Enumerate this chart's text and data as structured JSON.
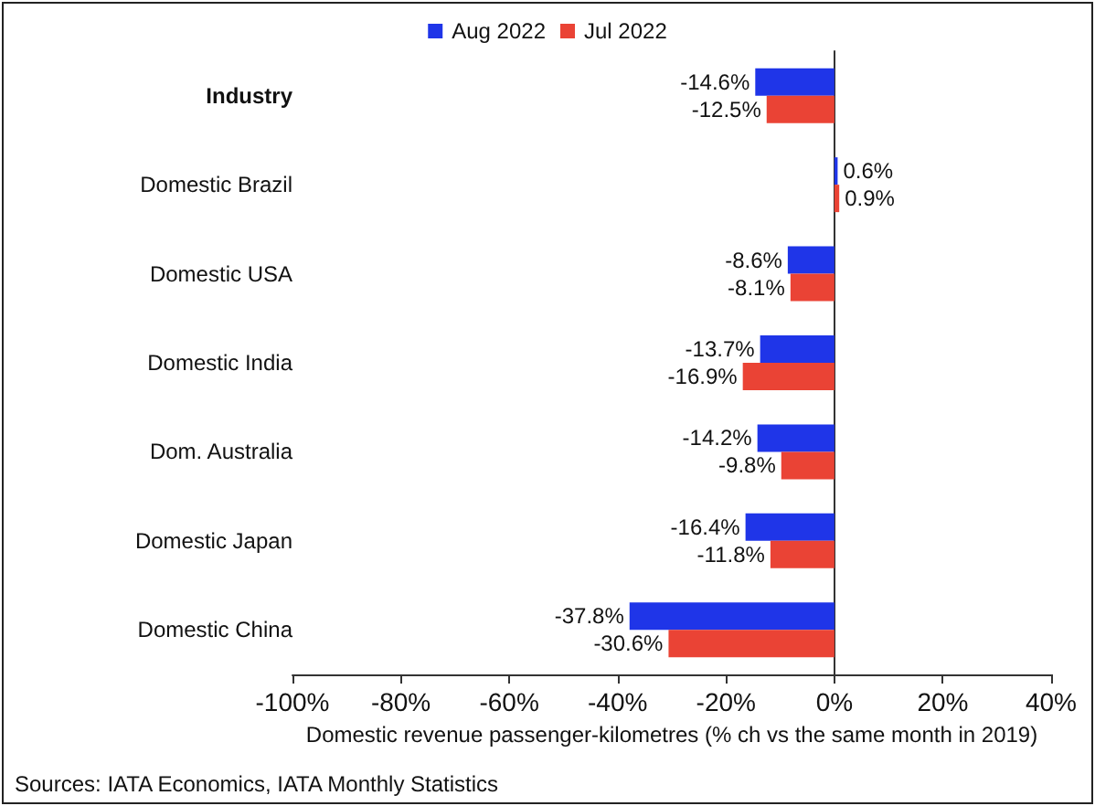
{
  "chart_data": {
    "type": "bar",
    "orientation": "horizontal",
    "categories": [
      "Industry",
      "Domestic Brazil",
      "Domestic USA",
      "Domestic India",
      "Dom. Australia",
      "Domestic Japan",
      "Domestic China"
    ],
    "series": [
      {
        "name": "Aug 2022",
        "color": "#1f35e8",
        "values": [
          -14.6,
          0.6,
          -8.6,
          -13.7,
          -14.2,
          -16.4,
          -37.8
        ],
        "value_labels": [
          "-14.6%",
          "0.6%",
          "-8.6%",
          "-13.7%",
          "-14.2%",
          "-16.4%",
          "-37.8%"
        ]
      },
      {
        "name": "Jul 2022",
        "color": "#ea4335",
        "values": [
          -12.5,
          0.9,
          -8.1,
          -16.9,
          -9.8,
          -11.8,
          -30.6
        ],
        "value_labels": [
          "-12.5%",
          "0.9%",
          "-8.1%",
          "-16.9%",
          "-9.8%",
          "-11.8%",
          "-30.6%"
        ]
      }
    ],
    "xlabel": "Domestic revenue passenger-kilometres (% ch vs the same month in 2019)",
    "xlim": [
      -100,
      40
    ],
    "xticks": [
      {
        "value": -100,
        "label": "-100%"
      },
      {
        "value": -80,
        "label": "-80%"
      },
      {
        "value": -60,
        "label": "-60%"
      },
      {
        "value": -40,
        "label": "-40%"
      },
      {
        "value": -20,
        "label": "-20%"
      },
      {
        "value": 0,
        "label": "0%"
      },
      {
        "value": 20,
        "label": "20%"
      },
      {
        "value": 40,
        "label": "40%"
      }
    ],
    "legend": "top",
    "annotations": [
      "Sources: IATA Economics, IATA Monthly Statistics"
    ]
  }
}
